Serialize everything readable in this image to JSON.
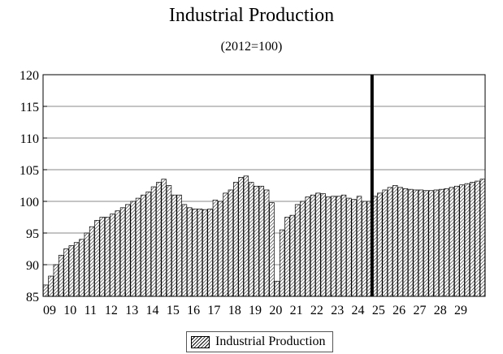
{
  "chart_data": {
    "type": "bar",
    "title": "Industrial Production",
    "subtitle": "(2012=100)",
    "xlabel": "",
    "ylabel": "",
    "ylim": [
      85,
      120
    ],
    "yticks": [
      85,
      90,
      95,
      100,
      105,
      110,
      115,
      120
    ],
    "x_tick_labels": [
      "09",
      "10",
      "11",
      "12",
      "13",
      "14",
      "15",
      "16",
      "17",
      "18",
      "19",
      "20",
      "21",
      "22",
      "23",
      "24",
      "25",
      "26",
      "27",
      "28",
      "29"
    ],
    "grid": true,
    "legend_position": "bottom-center",
    "series": [
      {
        "name": "Industrial Production",
        "frequency": "quarterly",
        "start": "2009Q1",
        "values": [
          86.8,
          88.2,
          90.0,
          91.5,
          92.5,
          93.0,
          93.5,
          94.0,
          95.0,
          96.0,
          97.0,
          97.5,
          97.5,
          98.0,
          98.5,
          99.0,
          99.5,
          100.0,
          100.5,
          101.0,
          101.5,
          102.3,
          103.0,
          103.5,
          102.5,
          101.0,
          101.0,
          99.5,
          99.0,
          98.8,
          98.8,
          98.7,
          98.8,
          100.2,
          100.0,
          101.3,
          101.8,
          103.0,
          103.8,
          104.0,
          103.0,
          102.4,
          102.4,
          101.8,
          99.8,
          87.4,
          95.5,
          97.5,
          97.8,
          99.5,
          100.0,
          100.7,
          101.0,
          101.3,
          101.2,
          100.7,
          100.8,
          100.8,
          101.0,
          100.5,
          100.3,
          100.8,
          100.0,
          100.0,
          100.8,
          101.3,
          101.8,
          102.2,
          102.5,
          102.2,
          102.0,
          101.9,
          101.8,
          101.8,
          101.7,
          101.7,
          101.8,
          101.9,
          102.0,
          102.2,
          102.4,
          102.6,
          102.8,
          103.0,
          103.2,
          103.5
        ]
      }
    ],
    "forecast_divider_after_label": "25",
    "colors": {
      "bar_fill": "#ffffff",
      "bar_hatch": "#000000",
      "divider": "#000000"
    }
  }
}
